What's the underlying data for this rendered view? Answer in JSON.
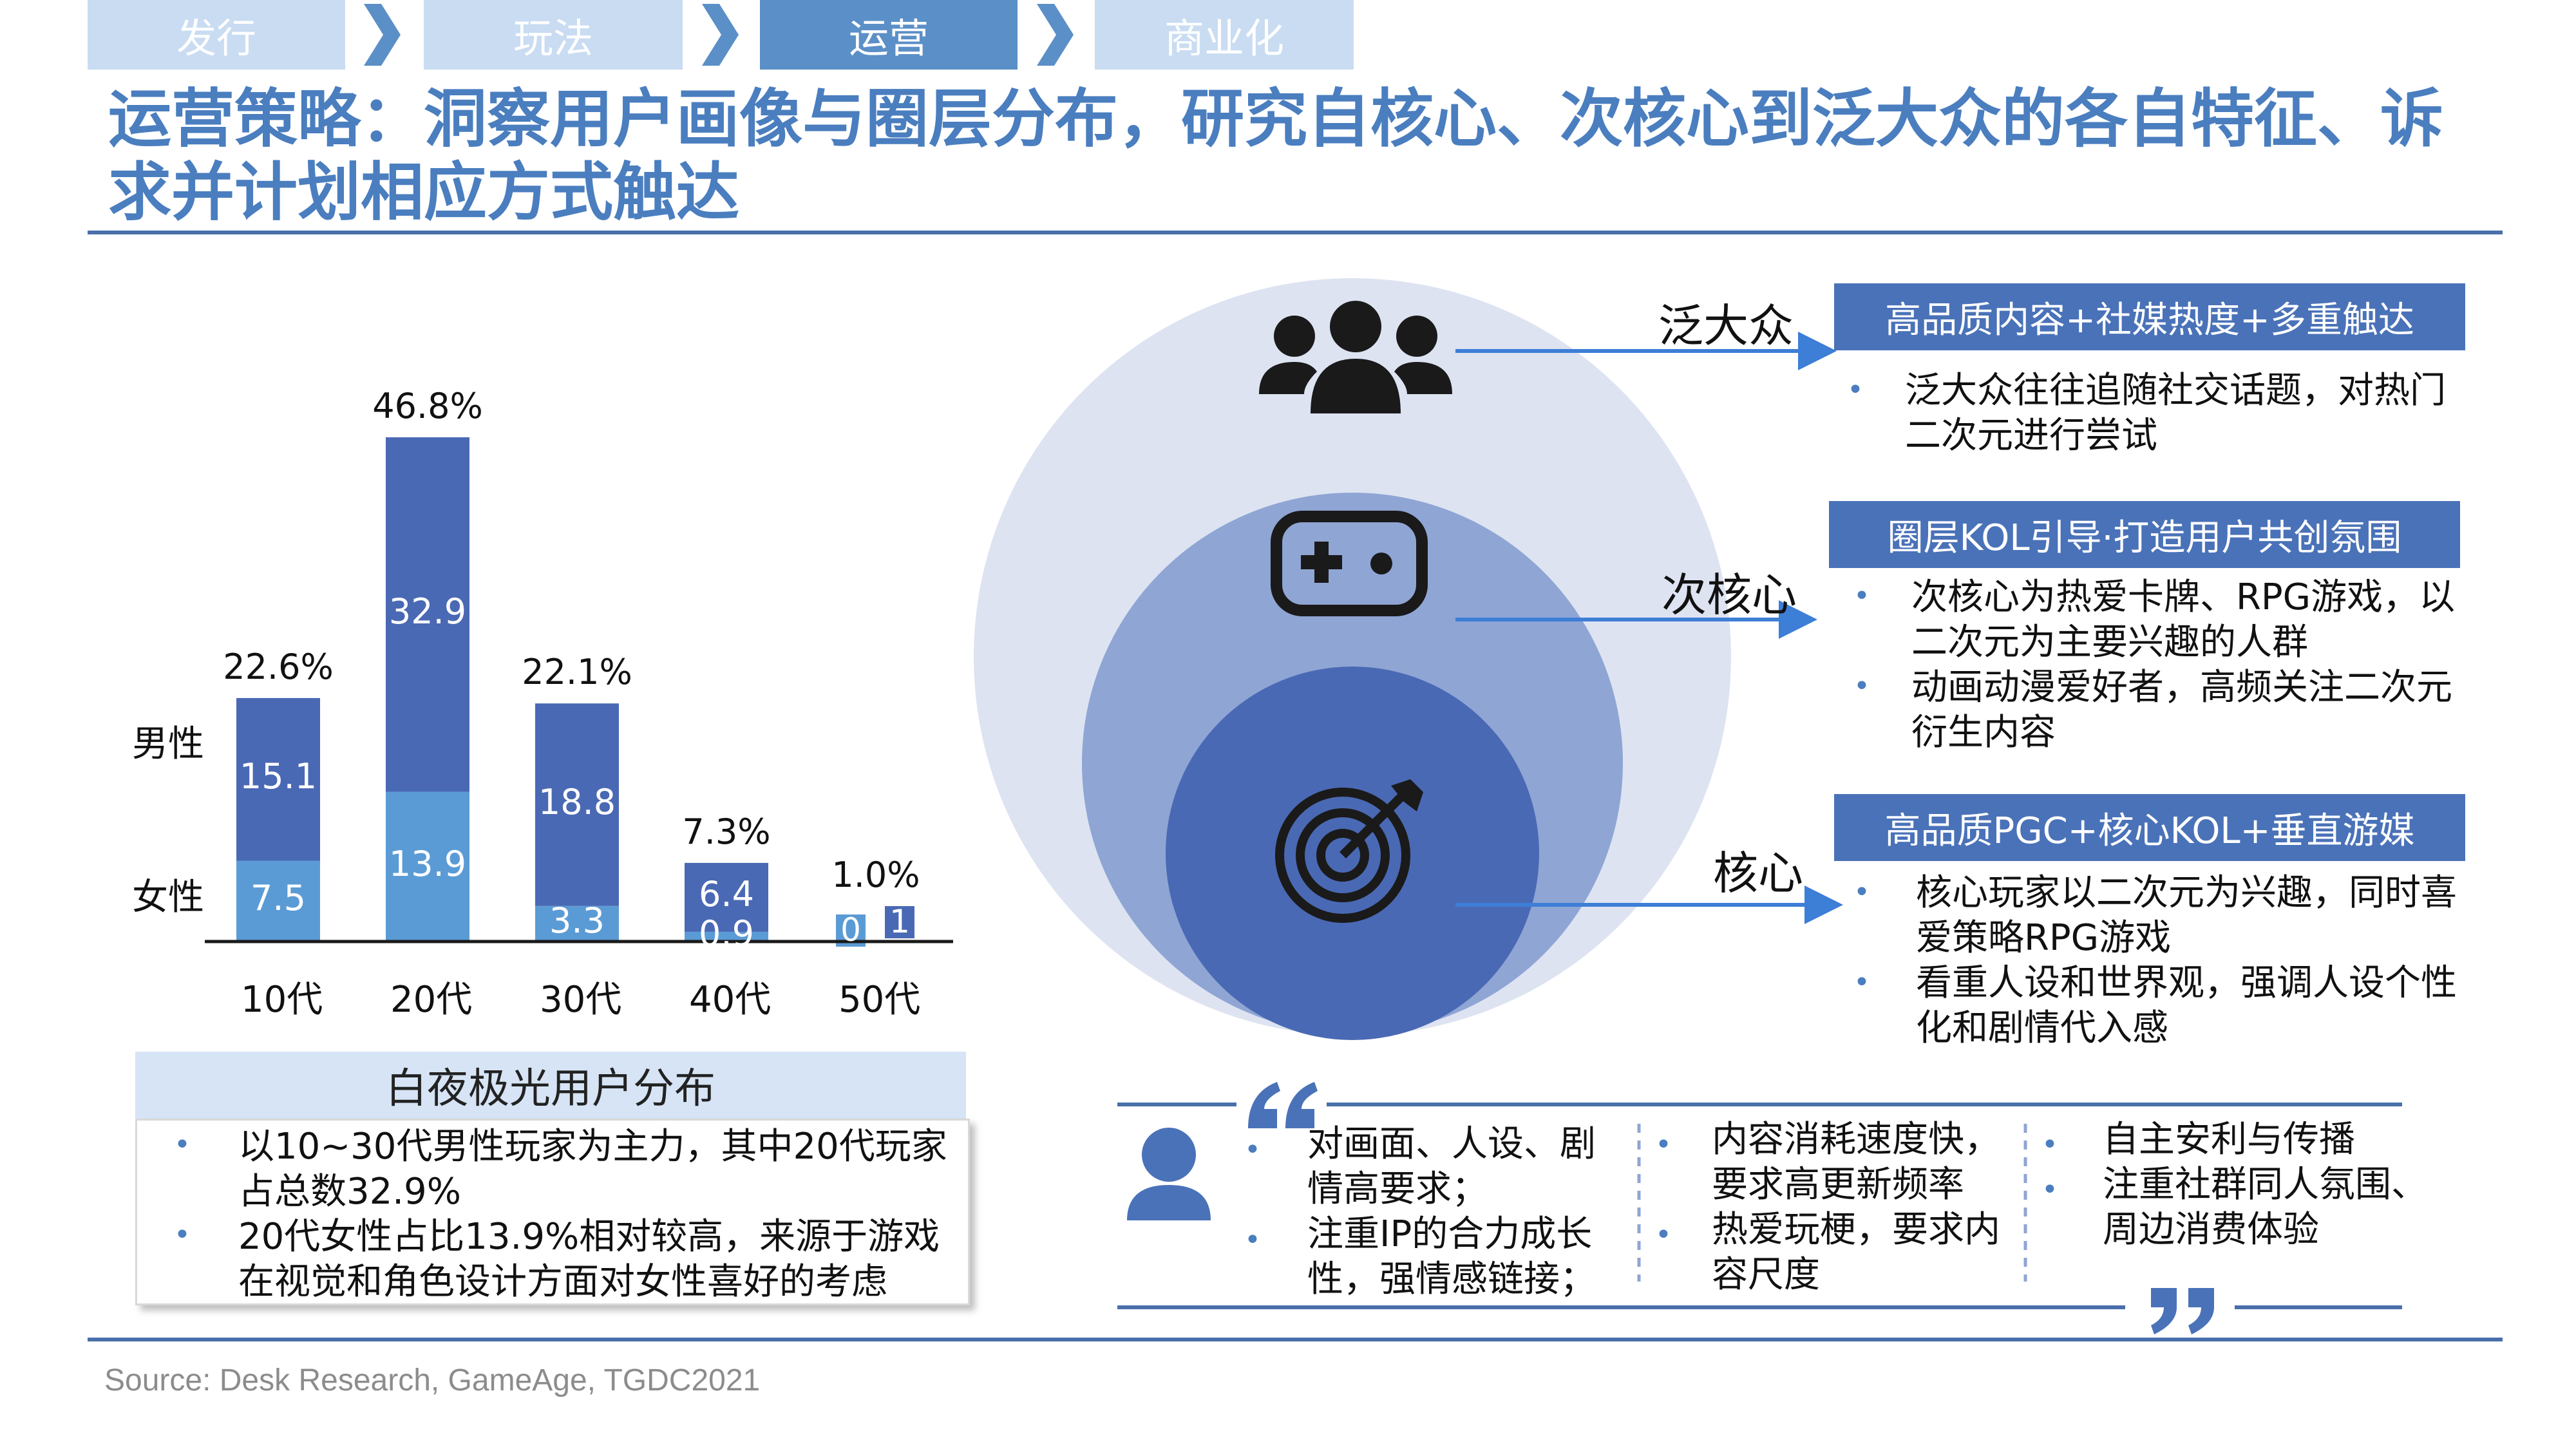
{
  "nav": {
    "tabs": [
      {
        "label": "发行",
        "active": false
      },
      {
        "label": "玩法",
        "active": false
      },
      {
        "label": "运营",
        "active": true
      },
      {
        "label": "商业化",
        "active": false
      }
    ]
  },
  "title": "运营策略：洞察用户画像与圈层分布，研究自核心、次核心到泛大众的各自特征、诉求并计划相应方式触达",
  "chart_data": {
    "type": "bar",
    "stacked": true,
    "categories": [
      "10代",
      "20代",
      "30代",
      "40代",
      "50代"
    ],
    "series": [
      {
        "name": "女性",
        "values": [
          7.5,
          13.9,
          3.3,
          0.9,
          0
        ],
        "color": "#5b9bd5"
      },
      {
        "name": "男性",
        "values": [
          15.1,
          32.9,
          18.8,
          6.4,
          1
        ],
        "color": "#4a69b4"
      }
    ],
    "totals": [
      "22.6%",
      "46.8%",
      "22.1%",
      "7.3%",
      "1.0%"
    ],
    "ylim": [
      0,
      50
    ],
    "grid": false
  },
  "chart_labels": {
    "male": "男性",
    "female": "女性"
  },
  "distribution": {
    "heading": "白夜极光用户分布",
    "bullets": [
      "以10~30代男性玩家为主力，其中20代玩家占总数32.9%",
      "20代女性占比13.9%相对较高，来源于游戏在视觉和角色设计方面对女性喜好的考虑"
    ]
  },
  "tiers": [
    {
      "label": "泛大众",
      "icon": "people-group-icon",
      "banner": "高品质内容+社媒热度+多重触达",
      "bullets": [
        "泛大众往往追随社交话题，对热门二次元进行尝试"
      ]
    },
    {
      "label": "次核心",
      "icon": "gamepad-icon",
      "banner": "圈层KOL引导·打造用户共创氛围",
      "bullets": [
        "次核心为热爱卡牌、RPG游戏，以二次元为主要兴趣的人群",
        "动画动漫爱好者，高频关注二次元衍生内容"
      ]
    },
    {
      "label": "核心",
      "icon": "target-icon",
      "banner": "高品质PGC+核心KOL+垂直游媒",
      "bullets": [
        "核心玩家以二次元为兴趣，同时喜爱策略RPG游戏",
        "看重人设和世界观，强调人设个性化和剧情代入感"
      ]
    }
  ],
  "needs": {
    "icon": "user-avatar-icon",
    "columns": [
      [
        "对画面、人设、剧情高要求；",
        "注重IP的合力成长性，强情感链接；"
      ],
      [
        "内容消耗速度快，要求高更新频率",
        "热爱玩梗，要求内容尺度"
      ],
      [
        "自主安利与传播",
        "注重社群同人氛围、周边消费体验"
      ]
    ]
  },
  "source": "Source: Desk Research, GameAge, TGDC2021"
}
